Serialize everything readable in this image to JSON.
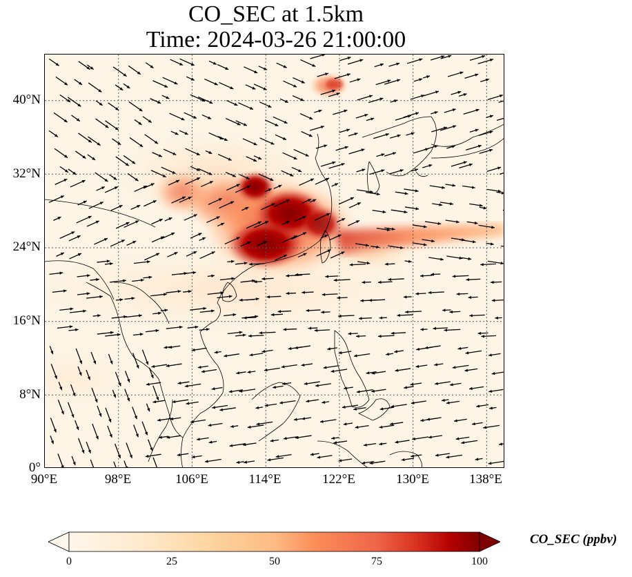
{
  "title": {
    "line1": "CO_SEC at 1.5km",
    "line2": "Time: 2024-03-26 21:00:00"
  },
  "map": {
    "lon_range": [
      90,
      140
    ],
    "lat_range": [
      0,
      45
    ],
    "lon_ticks": [
      "90°E",
      "98°E",
      "106°E",
      "114°E",
      "122°E",
      "130°E",
      "138°E"
    ],
    "lat_ticks": [
      "0°",
      "8°N",
      "16°N",
      "24°N",
      "32°N",
      "40°N"
    ],
    "gridlines": "dotted"
  },
  "colorbar": {
    "label": "CO_SEC (ppbv)",
    "ticks": [
      "0",
      "25",
      "50",
      "75",
      "100"
    ],
    "range": [
      0,
      100
    ],
    "extend": "both",
    "colormap": "OrRd",
    "colors": [
      "#fff7ec",
      "#fdd49e",
      "#fc8d59",
      "#d7301f",
      "#7f0000"
    ]
  }
}
